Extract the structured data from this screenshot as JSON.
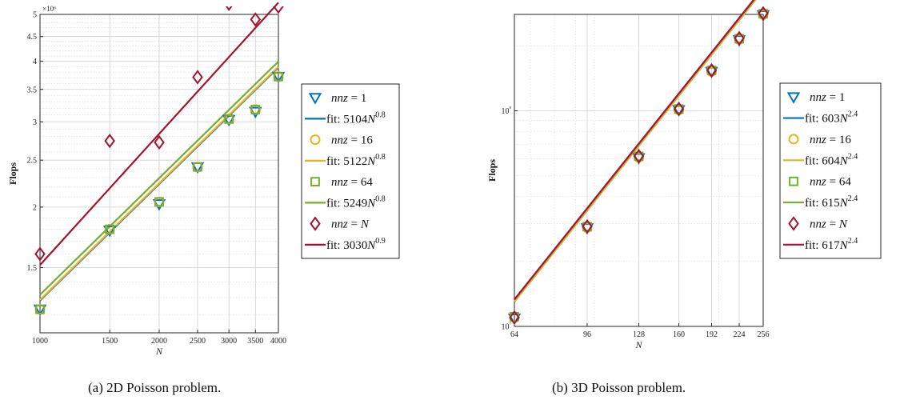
{
  "captions": [
    "(a)  2D Poisson problem.",
    "(b)  3D Poisson problem."
  ],
  "colors": {
    "blue": "#0072BD",
    "orange": "#EDB120",
    "green": "#77AC30",
    "red": "#A2142F"
  },
  "chart_data": [
    {
      "type": "scatter",
      "title": "",
      "xlabel": "N",
      "ylabel": "Flops",
      "x_scale": "log",
      "y_scale": "log",
      "xlim": [
        1000,
        4000
      ],
      "ylim": [
        1100000,
        5000000
      ],
      "x_ticks": [
        1000,
        1500,
        2000,
        2500,
        3000,
        3500,
        4000
      ],
      "x_tick_labels": [
        "1000",
        "1500",
        "2000",
        "2500",
        "3000",
        "3500",
        "4000"
      ],
      "y_ticks": [
        1500000,
        2000000,
        2500000,
        3000000,
        3500000,
        4000000,
        4500000,
        5000000
      ],
      "y_tick_labels": [
        "1.5",
        "2",
        "2.5",
        "3",
        "3.5",
        "4",
        "4.5",
        "5"
      ],
      "y_exponent_label": "×10⁶",
      "grid": true,
      "legend_position": "right-outside",
      "x": [
        1000,
        1500,
        2000,
        2500,
        3000,
        3500,
        4000
      ],
      "series": [
        {
          "name": "nnz = 1",
          "marker": "triangle-down",
          "color": "#0072BD",
          "values": [
            1230000,
            1790000,
            2030000,
            2420000,
            3030000,
            3150000,
            3720000
          ]
        },
        {
          "name": "fit: 5104N^0.8",
          "marker": "line",
          "color": "#0072BD",
          "fit": {
            "coef": 5104,
            "exp": 0.8
          }
        },
        {
          "name": "nnz = 16",
          "marker": "circle",
          "color": "#EDB120",
          "values": [
            1230000,
            1800000,
            2050000,
            2420000,
            3040000,
            3180000,
            3720000
          ]
        },
        {
          "name": "fit: 5122N^0.8",
          "marker": "line",
          "color": "#EDB120",
          "fit": {
            "coef": 5122,
            "exp": 0.8
          }
        },
        {
          "name": "nnz = 64",
          "marker": "square",
          "color": "#77AC30",
          "values": [
            1230000,
            1800000,
            2050000,
            2420000,
            3040000,
            3180000,
            3720000
          ]
        },
        {
          "name": "fit: 5249N^0.8",
          "marker": "line",
          "color": "#77AC30",
          "fit": {
            "coef": 5249,
            "exp": 0.8
          }
        },
        {
          "name": "nnz = N",
          "marker": "diamond",
          "color": "#A2142F",
          "values": [
            1600000,
            2740000,
            2720000,
            3710000,
            5260000,
            4880000,
            5190000
          ]
        },
        {
          "name": "fit: 3030N^0.9",
          "marker": "line",
          "color": "#A2142F",
          "fit": {
            "coef": 3030,
            "exp": 0.9
          }
        }
      ]
    },
    {
      "type": "scatter",
      "title": "",
      "xlabel": "N",
      "ylabel": "Flops",
      "x_scale": "log",
      "y_scale": "log",
      "xlim": [
        64,
        256
      ],
      "ylim": [
        10000000,
        280000000
      ],
      "x_ticks": [
        64,
        96,
        128,
        160,
        192,
        224,
        256
      ],
      "x_tick_labels": [
        "64",
        "96",
        "128",
        "160",
        "192",
        "224",
        "256"
      ],
      "y_ticks": [
        10000000,
        100000000
      ],
      "y_tick_labels": [
        "10⁷",
        "10⁸"
      ],
      "grid": true,
      "legend_position": "right-outside",
      "x": [
        64,
        96,
        128,
        160,
        192,
        224,
        256
      ],
      "series": [
        {
          "name": "nnz = 1",
          "marker": "triangle-down",
          "color": "#0072BD",
          "values": [
            10900000,
            28600000,
            60500000,
            101000000,
            152000000,
            213000000,
            278000000
          ]
        },
        {
          "name": "fit: 603N^2.4",
          "marker": "line",
          "color": "#0072BD",
          "fit": {
            "coef": 603,
            "exp": 2.4
          }
        },
        {
          "name": "nnz = 16",
          "marker": "circle",
          "color": "#EDB120",
          "values": [
            11000000,
            28700000,
            60700000,
            101000000,
            152000000,
            214000000,
            279000000
          ]
        },
        {
          "name": "fit: 604N^2.4",
          "marker": "line",
          "color": "#EDB120",
          "fit": {
            "coef": 604,
            "exp": 2.4
          }
        },
        {
          "name": "nnz = 64",
          "marker": "square",
          "color": "#77AC30",
          "values": [
            11100000,
            29000000,
            61500000,
            102000000,
            154000000,
            216000000,
            282000000
          ]
        },
        {
          "name": "fit: 615N^2.4",
          "marker": "line",
          "color": "#77AC30",
          "fit": {
            "coef": 615,
            "exp": 2.4
          }
        },
        {
          "name": "nnz = N",
          "marker": "diamond",
          "color": "#A2142F",
          "values": [
            11000000,
            29100000,
            61600000,
            102000000,
            154000000,
            217000000,
            283000000
          ]
        },
        {
          "name": "fit: 617N^2.4",
          "marker": "line",
          "color": "#A2142F",
          "fit": {
            "coef": 617,
            "exp": 2.4
          }
        }
      ]
    }
  ]
}
